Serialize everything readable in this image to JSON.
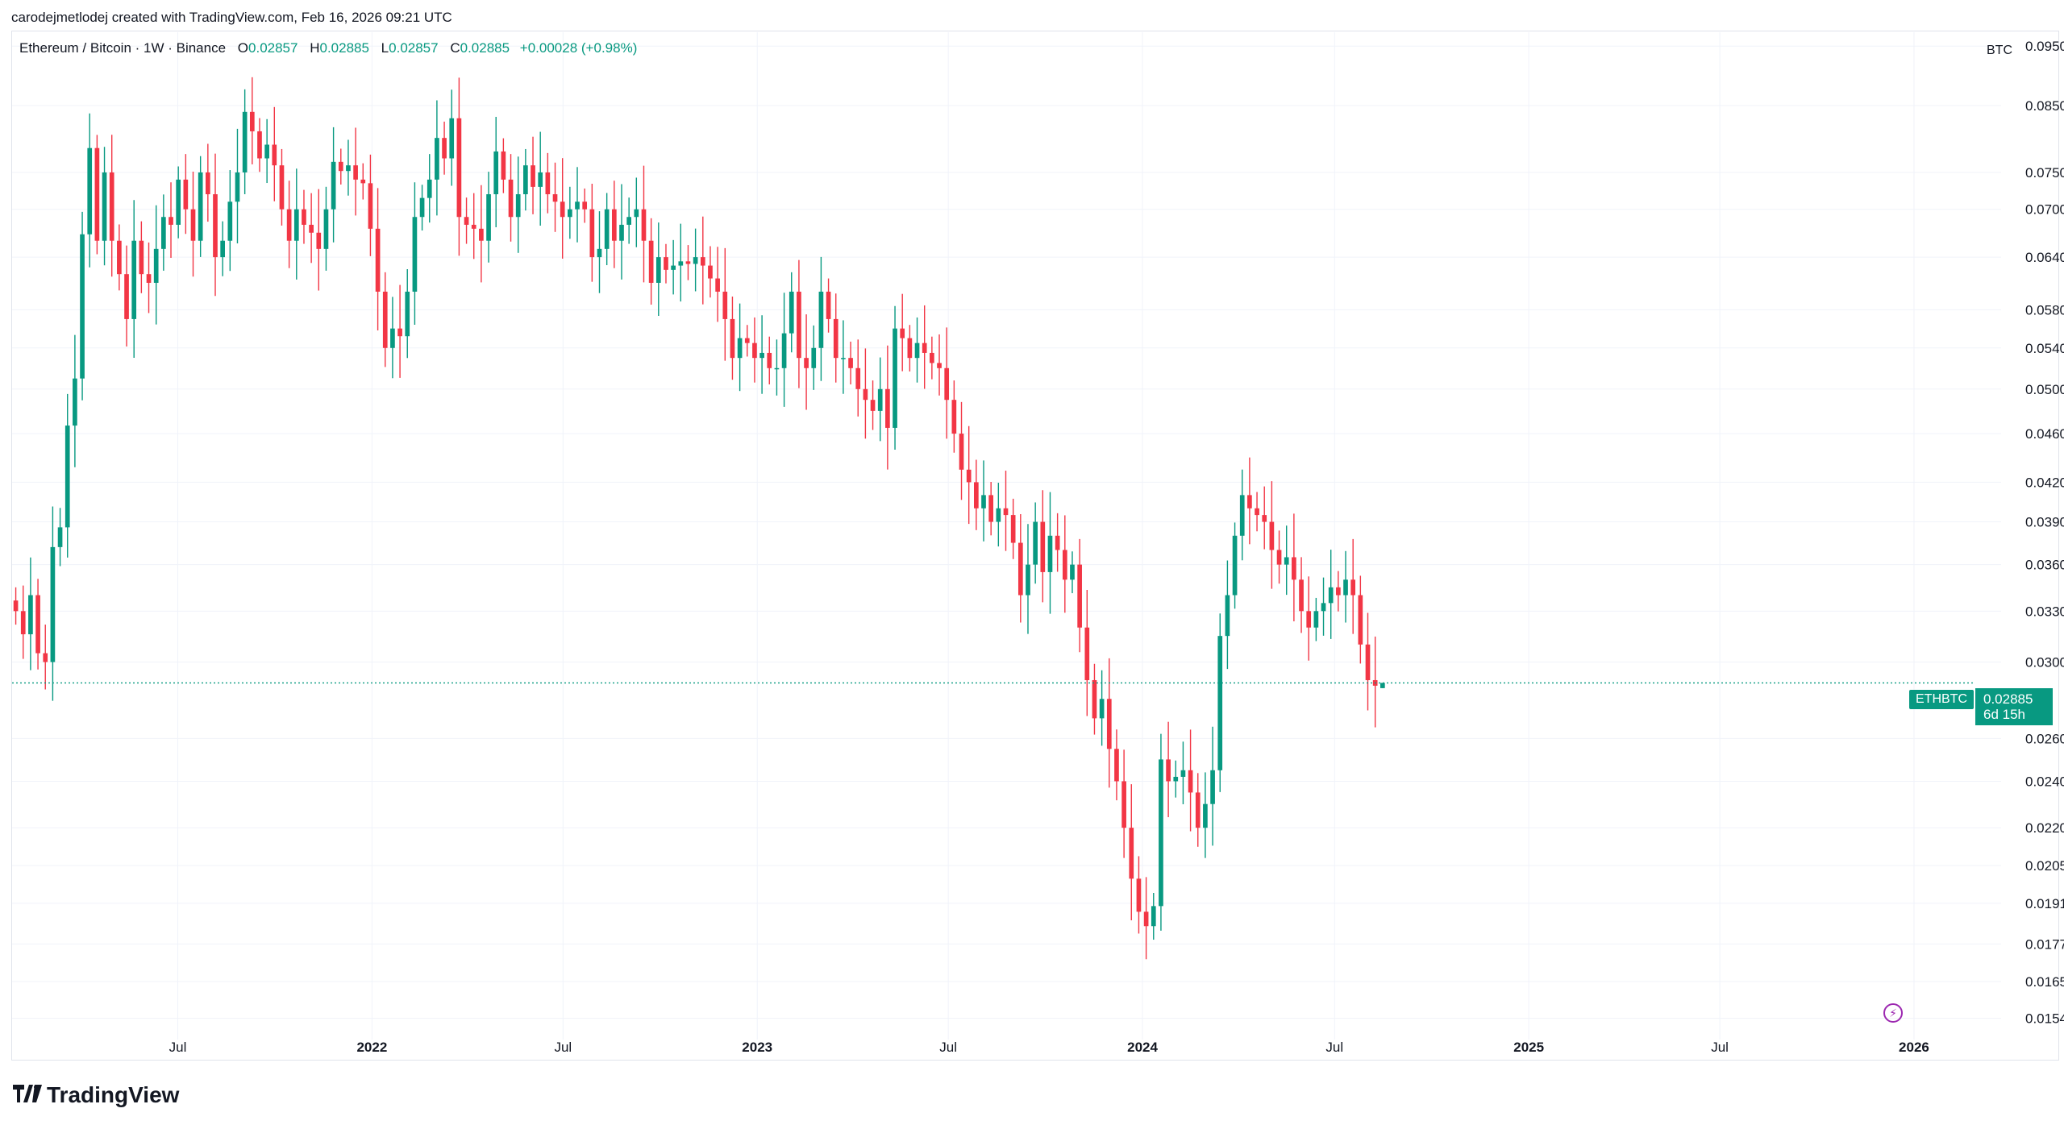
{
  "header": {
    "credit": "carodejmetlodej created with TradingView.com, Feb 16, 2026 09:21 UTC"
  },
  "legend": {
    "symbol": "Ethereum / Bitcoin · 1W · Binance",
    "o_key": "O",
    "o_val": "0.02857",
    "h_key": "H",
    "h_val": "0.02885",
    "l_key": "L",
    "l_val": "0.02857",
    "c_key": "C",
    "c_val": "0.02885",
    "change": "+0.00028 (+0.98%)"
  },
  "price_axis": {
    "currency": "BTC",
    "last_symbol": "ETHBTC",
    "last_price": "0.02885",
    "countdown": "6d 15h"
  },
  "brand": {
    "logo_icon": "tradingview-logo-icon",
    "name": "TradingView"
  },
  "colors": {
    "up": "#089981",
    "down": "#f23645",
    "grid": "#f0f3fa",
    "accent": "#9c27b0"
  },
  "chart_data": {
    "type": "candlestick",
    "title": "Ethereum / Bitcoin · 1W · Binance",
    "scale": "log",
    "ylim": [
      0.0148,
      0.0975
    ],
    "y_ticks": [
      "0.09500",
      "0.08500",
      "0.07500",
      "0.07000",
      "0.06400",
      "0.05800",
      "0.05400",
      "0.05000",
      "0.04600",
      "0.04200",
      "0.03900",
      "0.03600",
      "0.03300",
      "0.03000",
      "0.02600",
      "0.02400",
      "0.02200",
      "0.02050",
      "0.01910",
      "0.01770",
      "0.01650",
      "0.01540"
    ],
    "x_ticks": [
      {
        "label": "Jul",
        "date": "2021-07-01",
        "major": false
      },
      {
        "label": "2022",
        "date": "2022-01-01",
        "major": true
      },
      {
        "label": "Jul",
        "date": "2022-07-01",
        "major": false
      },
      {
        "label": "2023",
        "date": "2023-01-01",
        "major": true
      },
      {
        "label": "Jul",
        "date": "2023-07-01",
        "major": false
      },
      {
        "label": "2024",
        "date": "2024-01-01",
        "major": true
      },
      {
        "label": "Jul",
        "date": "2024-07-01",
        "major": false
      },
      {
        "label": "2025",
        "date": "2025-01-01",
        "major": true
      },
      {
        "label": "Jul",
        "date": "2025-07-01",
        "major": false
      },
      {
        "label": "2026",
        "date": "2026-01-01",
        "major": true
      }
    ],
    "x_range": [
      "2021-01-25",
      "2026-03-23"
    ],
    "first_week": "2021-01-25",
    "closes": [
      0.033,
      0.0316,
      0.034,
      0.0305,
      0.03,
      0.0372,
      0.0386,
      0.0467,
      0.051,
      0.0668,
      0.0785,
      0.066,
      0.075,
      0.066,
      0.062,
      0.057,
      0.066,
      0.062,
      0.061,
      0.065,
      0.069,
      0.068,
      0.074,
      0.07,
      0.066,
      0.075,
      0.072,
      0.064,
      0.066,
      0.071,
      0.075,
      0.084,
      0.081,
      0.077,
      0.079,
      0.076,
      0.07,
      0.066,
      0.07,
      0.068,
      0.067,
      0.065,
      0.07,
      0.0765,
      0.0752,
      0.076,
      0.074,
      0.0735,
      0.0675,
      0.06,
      0.054,
      0.056,
      0.0552,
      0.06,
      0.069,
      0.0715,
      0.074,
      0.08,
      0.077,
      0.083,
      0.069,
      0.068,
      0.0675,
      0.066,
      0.072,
      0.078,
      0.074,
      0.069,
      0.072,
      0.076,
      0.073,
      0.075,
      0.072,
      0.071,
      0.069,
      0.07,
      0.071,
      0.07,
      0.064,
      0.065,
      0.07,
      0.066,
      0.068,
      0.069,
      0.07,
      0.066,
      0.061,
      0.064,
      0.0625,
      0.063,
      0.0635,
      0.0632,
      0.064,
      0.063,
      0.0615,
      0.06,
      0.057,
      0.053,
      0.055,
      0.0545,
      0.053,
      0.0535,
      0.052,
      0.052,
      0.0555,
      0.06,
      0.053,
      0.052,
      0.054,
      0.06,
      0.057,
      0.053,
      0.053,
      0.052,
      0.05,
      0.049,
      0.048,
      0.05,
      0.0465,
      0.056,
      0.055,
      0.053,
      0.0545,
      0.0535,
      0.0525,
      0.052,
      0.049,
      0.046,
      0.043,
      0.042,
      0.04,
      0.041,
      0.039,
      0.04,
      0.0395,
      0.0375,
      0.034,
      0.036,
      0.039,
      0.0355,
      0.038,
      0.037,
      0.035,
      0.036,
      0.032,
      0.029,
      0.027,
      0.028,
      0.0255,
      0.024,
      0.022,
      0.02,
      0.0188,
      0.0183,
      0.019,
      0.025,
      0.024,
      0.0242,
      0.0245,
      0.0235,
      0.022,
      0.023,
      0.0245,
      0.0315,
      0.034,
      0.038,
      0.041,
      0.04,
      0.0395,
      0.039,
      0.037,
      0.036,
      0.0365,
      0.035,
      0.033,
      0.032,
      0.033,
      0.0335,
      0.0345,
      0.034,
      0.035,
      0.034,
      0.031,
      0.029,
      0.0287,
      0.02885
    ],
    "last": {
      "open": 0.02857,
      "high": 0.02885,
      "low": 0.02857,
      "close": 0.02885
    }
  }
}
